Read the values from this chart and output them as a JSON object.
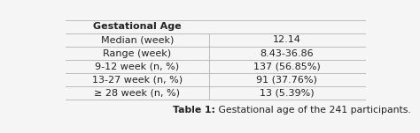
{
  "header_col1": "Gestational Age",
  "rows": [
    [
      "Median (week)",
      "12.14"
    ],
    [
      "Range (week)",
      "8.43-36.86"
    ],
    [
      "9-12 week (n, %)",
      "137 (56.85%)"
    ],
    [
      "13-27 week (n, %)",
      "91 (37.76%)"
    ],
    [
      "≥ 28 week (n, %)",
      "13 (5.39%)"
    ]
  ],
  "caption_bold": "Table 1:",
  "caption_normal": " Gestational age of the 241 participants.",
  "bg_color": "#f5f5f5",
  "line_color": "#bbbbbb",
  "text_color": "#222222",
  "font_size": 8.0,
  "caption_font_size": 7.8
}
